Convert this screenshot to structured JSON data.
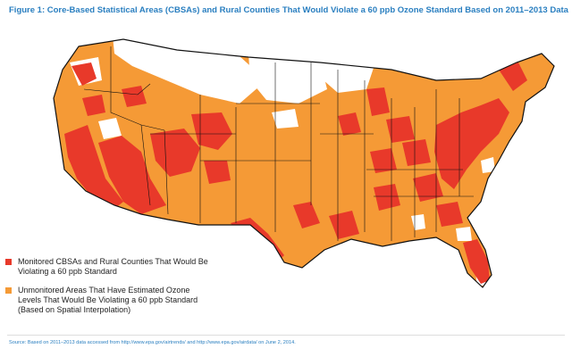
{
  "figure": {
    "title": "Figure 1: Core-Based Statistical Areas (CBSAs) and Rural Counties That Would Violate a 60 ppb Ozone Standard Based on 2011–2013 Data"
  },
  "legend": {
    "items": [
      {
        "label": "Monitored CBSAs and Rural Counties That Would Be Violating a 60 ppb Standard",
        "color": "#e8392a"
      },
      {
        "label": "Unmonitored Areas That Have Estimated Ozone Levels That Would Be Violating a 60 ppb Standard (Based on Spatial Interpolation)",
        "color": "#f59a36"
      }
    ]
  },
  "source": "Source: Based on 2011–2013 data accessed from http://www.epa.gov/airtrends/ and http://www.epa.gov/airdata/ on June 2, 2014.",
  "colors": {
    "monitored": "#e8392a",
    "unmonitored": "#f59a36",
    "background_land": "#ffffff",
    "borders": "#111111",
    "title": "#2a7fc0"
  }
}
